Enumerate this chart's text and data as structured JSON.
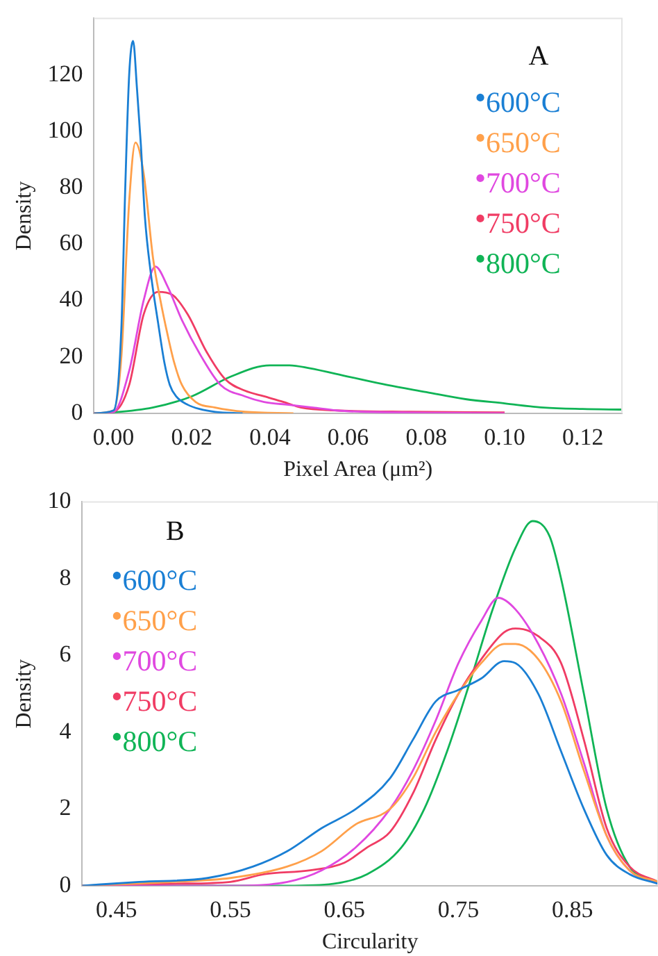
{
  "chart_data": [
    {
      "type": "line",
      "title": "A",
      "xlabel": "Pixel Area (μm²)",
      "ylabel": "Density",
      "xlim": [
        -0.005,
        0.13
      ],
      "xticks": [
        {
          "value": 0,
          "label": "0.00"
        },
        {
          "value": 0.02,
          "label": "0.02"
        },
        {
          "value": 0.04,
          "label": "0.04"
        },
        {
          "value": 0.06,
          "label": "0.06"
        },
        {
          "value": 0.08,
          "label": "0.08"
        },
        {
          "value": 0.1,
          "label": "0.10"
        },
        {
          "value": 0.12,
          "label": "0.12"
        }
      ],
      "ylim": [
        0,
        140
      ],
      "yticks": [
        0,
        20,
        40,
        60,
        80,
        100,
        120
      ],
      "grid": false,
      "legend": "top right",
      "marker": "none",
      "line_style": "solid",
      "series": [
        {
          "name": "600°C",
          "color": "#1a7fd4",
          "x": [
            -0.005,
            0,
            0.002,
            0.003,
            0.004,
            0.005,
            0.006,
            0.007,
            0.008,
            0.0095,
            0.0114,
            0.013,
            0.0144,
            0.016,
            0.019,
            0.022,
            0.026,
            0.033
          ],
          "values": [
            0,
            1,
            30,
            80,
            120,
            132,
            115,
            95,
            70,
            50,
            32,
            18,
            10,
            6,
            3,
            1.5,
            0.5,
            0
          ]
        },
        {
          "name": "650°C",
          "color": "#ffa04a",
          "x": [
            -0.005,
            0,
            0.002,
            0.004,
            0.0056,
            0.0077,
            0.0101,
            0.012,
            0.0138,
            0.0155,
            0.0175,
            0.021,
            0.026,
            0.0336,
            0.046
          ],
          "values": [
            0,
            1,
            20,
            75,
            96,
            85,
            55,
            40,
            28,
            18,
            10,
            4,
            2,
            0.5,
            0
          ]
        },
        {
          "name": "700°C",
          "color": "#e048e0",
          "x": [
            -0.005,
            0,
            0.004,
            0.0077,
            0.0107,
            0.0138,
            0.0175,
            0.0225,
            0.0274,
            0.0336,
            0.0385,
            0.0447,
            0.051,
            0.057,
            0.064,
            0.1
          ],
          "values": [
            0,
            0.5,
            15,
            40,
            52,
            45,
            33,
            20,
            10,
            6,
            4,
            3,
            2,
            1,
            0.5,
            0
          ]
        },
        {
          "name": "750°C",
          "color": "#f03c64",
          "x": [
            -0.005,
            0,
            0.004,
            0.0077,
            0.0114,
            0.015,
            0.019,
            0.0237,
            0.0286,
            0.0336,
            0.0385,
            0.0435,
            0.048,
            0.057,
            0.0756,
            0.1
          ],
          "values": [
            0,
            0.5,
            10,
            35,
            43,
            42,
            35,
            22,
            12,
            8,
            6,
            4,
            2,
            1,
            0.5,
            0.3
          ]
        },
        {
          "name": "800°C",
          "color": "#10b456",
          "x": [
            -0.005,
            0,
            0.01,
            0.02,
            0.03,
            0.04,
            0.045,
            0.05,
            0.06,
            0.07,
            0.08,
            0.09,
            0.1,
            0.11,
            0.12,
            0.13
          ],
          "values": [
            0,
            0.3,
            2,
            6,
            13,
            17,
            17,
            16,
            13,
            10,
            7.5,
            5,
            3.5,
            2,
            1.5,
            1.3
          ]
        }
      ]
    },
    {
      "type": "line",
      "title": "B",
      "xlabel": "Circularity",
      "ylabel": "Density",
      "xlim": [
        0.42,
        0.925
      ],
      "xticks": [
        0.45,
        0.55,
        0.65,
        0.75,
        0.85
      ],
      "ylim": [
        0,
        10
      ],
      "yticks": [
        0,
        2,
        4,
        6,
        8,
        10
      ],
      "grid": false,
      "legend": "top left",
      "marker": "none",
      "line_style": "solid",
      "series": [
        {
          "name": "600°C",
          "color": "#1a7fd4",
          "x": [
            0.42,
            0.47,
            0.53,
            0.57,
            0.6,
            0.63,
            0.66,
            0.69,
            0.71,
            0.73,
            0.75,
            0.77,
            0.79,
            0.8,
            0.82,
            0.84,
            0.86,
            0.88,
            0.9,
            0.925
          ],
          "values": [
            0,
            0.1,
            0.2,
            0.5,
            0.9,
            1.5,
            2,
            2.8,
            3.8,
            4.8,
            5.1,
            5.4,
            5.85,
            5.8,
            5,
            3.5,
            2,
            0.8,
            0.3,
            0.05
          ]
        },
        {
          "name": "650°C",
          "color": "#ffa04a",
          "x": [
            0.42,
            0.5,
            0.55,
            0.6,
            0.63,
            0.66,
            0.69,
            0.71,
            0.73,
            0.75,
            0.77,
            0.79,
            0.8,
            0.82,
            0.84,
            0.86,
            0.88,
            0.9,
            0.925
          ],
          "values": [
            0,
            0.1,
            0.2,
            0.5,
            0.9,
            1.6,
            2,
            2.8,
            4,
            5,
            5.8,
            6.3,
            6.3,
            5.9,
            4.8,
            3,
            1.3,
            0.4,
            0.1
          ]
        },
        {
          "name": "700°C",
          "color": "#e048e0",
          "x": [
            0.42,
            0.55,
            0.6,
            0.63,
            0.66,
            0.69,
            0.71,
            0.73,
            0.75,
            0.77,
            0.785,
            0.8,
            0.82,
            0.84,
            0.86,
            0.88,
            0.9,
            0.925
          ],
          "values": [
            0,
            0,
            0.1,
            0.4,
            1,
            2,
            3,
            4.3,
            5.8,
            6.9,
            7.5,
            7.2,
            6.3,
            5,
            3.2,
            1.3,
            0.4,
            0.05
          ]
        },
        {
          "name": "750°C",
          "color": "#f03c64",
          "x": [
            0.42,
            0.5,
            0.55,
            0.58,
            0.62,
            0.65,
            0.67,
            0.69,
            0.71,
            0.73,
            0.75,
            0.77,
            0.79,
            0.8,
            0.82,
            0.84,
            0.86,
            0.88,
            0.9,
            0.925
          ],
          "values": [
            0,
            0.05,
            0.1,
            0.3,
            0.4,
            0.6,
            1,
            1.4,
            2.4,
            3.8,
            5,
            5.9,
            6.6,
            6.7,
            6.5,
            5.8,
            3.8,
            1.5,
            0.5,
            0.1
          ]
        },
        {
          "name": "800°C",
          "color": "#10b456",
          "x": [
            0.42,
            0.6,
            0.64,
            0.67,
            0.7,
            0.72,
            0.74,
            0.76,
            0.78,
            0.8,
            0.815,
            0.83,
            0.84,
            0.86,
            0.88,
            0.9,
            0.925
          ],
          "values": [
            0,
            0,
            0.05,
            0.3,
            1,
            2,
            3.5,
            5.3,
            7.2,
            8.8,
            9.5,
            9.1,
            8,
            5,
            2,
            0.5,
            0.1
          ]
        }
      ]
    }
  ]
}
